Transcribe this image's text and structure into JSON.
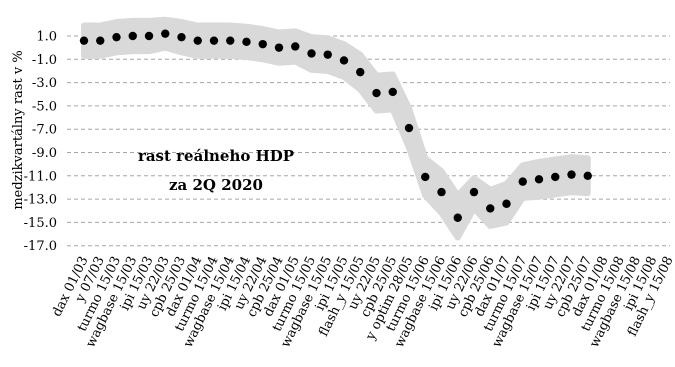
{
  "chart_data": {
    "type": "scatter",
    "title": "",
    "ylabel": "medzikvartálny rast v %",
    "xlabel": "",
    "ylim": [
      -17,
      2
    ],
    "yticks": [
      1.0,
      -1.0,
      -3.0,
      -5.0,
      -7.0,
      -9.0,
      -11.0,
      -13.0,
      -15.0,
      -17.0
    ],
    "ytick_labels": [
      "1.0",
      "-1.0",
      "-3.0",
      "-5.0",
      "-7.0",
      "-9.0",
      "-11.0",
      "-13.0",
      "-15.0",
      "-17.0"
    ],
    "grid": true,
    "annotation": [
      "rast reálneho HDP",
      "za 2Q 2020"
    ],
    "categories": [
      "dax 01/03",
      "y 07/03",
      "turmo 15/03",
      "wagbase 15/03",
      "ipi 15/03",
      "uy 22/03",
      "cpb 25/03",
      "dax 01/04",
      "turmo 15/04",
      "wagbase 15/04",
      "ipi 15/04",
      "uy 22/04",
      "cpb 25/04",
      "dax 01/05",
      "turmo 15/05",
      "wagbase 15/05",
      "ipi 15/05",
      "flash_y 15/05",
      "uy 22/05",
      "cpb 25/05",
      "y optim 28/05",
      "turmo 15/06",
      "wagbase 15/06",
      "ipi 15/06",
      "uy 22/06",
      "cpb 25/06",
      "dax 01/07",
      "turmo 15/07",
      "wagbase 15/07",
      "ipi 15/07",
      "uy 22/07",
      "cpb 25/07",
      "dax 01/08",
      "turmo 15/08",
      "wagbase 15/08",
      "ipi 15/08",
      "flash_y 15/08"
    ],
    "series": [
      {
        "name": "",
        "type": "scatter",
        "color": "#000000",
        "values": [
          0.6,
          0.6,
          0.9,
          1.0,
          1.0,
          1.2,
          0.9,
          0.6,
          0.6,
          0.6,
          0.5,
          0.3,
          0.0,
          0.1,
          -0.5,
          -0.6,
          -1.1,
          -2.1,
          -3.9,
          -3.8,
          -6.9,
          -11.1,
          -12.4,
          -14.6,
          -12.4,
          -13.8,
          -13.4,
          -11.5,
          -11.3,
          -11.1,
          -10.9,
          -11.0,
          null,
          null,
          null,
          null,
          null
        ]
      }
    ],
    "band": {
      "color": "#d9d9d9",
      "upper": [
        1.9,
        1.9,
        2.2,
        2.3,
        2.3,
        2.4,
        2.2,
        1.9,
        1.9,
        1.9,
        1.8,
        1.6,
        1.3,
        1.4,
        0.9,
        0.8,
        0.3,
        -0.6,
        -2.4,
        -2.3,
        -5.2,
        -9.5,
        -10.6,
        -12.7,
        -11.2,
        -12.2,
        -11.7,
        -10.1,
        -9.8,
        -9.6,
        -9.4,
        -9.5
      ],
      "lower": [
        -0.7,
        -0.7,
        -0.4,
        -0.3,
        -0.3,
        0.0,
        -0.4,
        -0.7,
        -0.7,
        -0.7,
        -0.8,
        -1.0,
        -1.3,
        -1.2,
        -1.9,
        -2.0,
        -2.5,
        -3.6,
        -5.4,
        -5.3,
        -8.6,
        -12.7,
        -14.2,
        -16.3,
        -13.8,
        -15.3,
        -15.0,
        -12.9,
        -12.8,
        -12.6,
        -12.4,
        -12.5
      ]
    }
  }
}
